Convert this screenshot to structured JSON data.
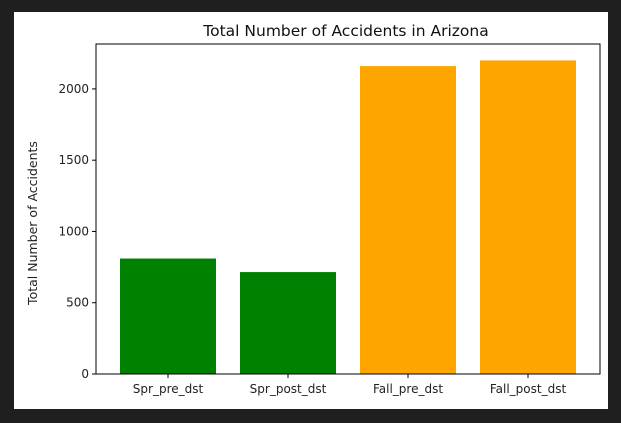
{
  "chart_data": {
    "type": "bar",
    "title": "Total Number of Accidents in Arizona",
    "xlabel": "",
    "ylabel": "Total Number of Accidents",
    "categories": [
      "Spr_pre_dst",
      "Spr_post_dst",
      "Fall_pre_dst",
      "Fall_post_dst"
    ],
    "values": [
      810,
      715,
      2160,
      2200
    ],
    "colors": [
      "#008000",
      "#008000",
      "#FFA500",
      "#FFA500"
    ],
    "ylim": [
      0,
      2315
    ],
    "yticks": [
      0,
      500,
      1000,
      1500,
      2000
    ],
    "grid": false
  }
}
